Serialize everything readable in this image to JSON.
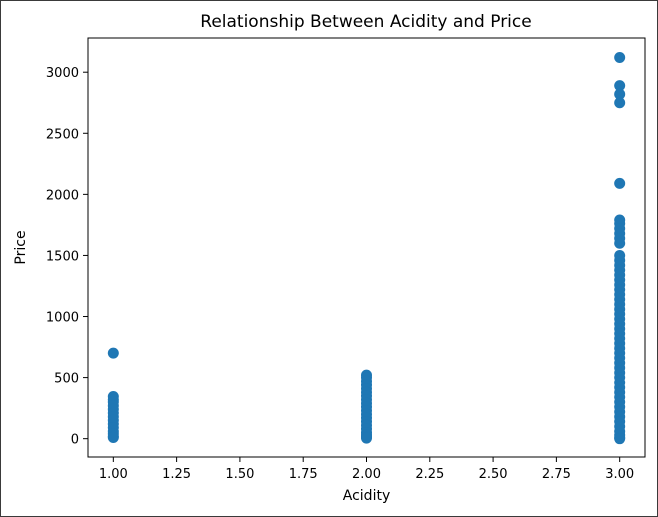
{
  "chart_data": {
    "type": "scatter",
    "title": "Relationship Between Acidity and Price",
    "xlabel": "Acidity",
    "ylabel": "Price",
    "xlim": [
      0.9,
      3.1
    ],
    "ylim": [
      -150,
      3280
    ],
    "xticks": [
      1.0,
      1.25,
      1.5,
      1.75,
      2.0,
      2.25,
      2.5,
      2.75,
      3.0
    ],
    "xtick_labels": [
      "1.00",
      "1.25",
      "1.50",
      "1.75",
      "2.00",
      "2.25",
      "2.50",
      "2.75",
      "3.00"
    ],
    "yticks": [
      0,
      500,
      1000,
      1500,
      2000,
      2500,
      3000
    ],
    "ytick_labels": [
      "0",
      "500",
      "1000",
      "1500",
      "2000",
      "2500",
      "3000"
    ],
    "grid": false,
    "marker_color": "#1f77b4",
    "series": [
      {
        "points": [
          [
            1.0,
            700
          ],
          [
            1.0,
            345
          ],
          [
            1.0,
            320
          ],
          [
            1.0,
            300
          ],
          [
            1.0,
            270
          ],
          [
            1.0,
            240
          ],
          [
            1.0,
            210
          ],
          [
            1.0,
            180
          ],
          [
            1.0,
            150
          ],
          [
            1.0,
            120
          ],
          [
            1.0,
            90
          ],
          [
            1.0,
            60
          ],
          [
            1.0,
            40
          ],
          [
            1.0,
            20
          ],
          [
            1.0,
            10
          ],
          [
            2.0,
            520
          ],
          [
            2.0,
            500
          ],
          [
            2.0,
            470
          ],
          [
            2.0,
            440
          ],
          [
            2.0,
            410
          ],
          [
            2.0,
            380
          ],
          [
            2.0,
            350
          ],
          [
            2.0,
            320
          ],
          [
            2.0,
            290
          ],
          [
            2.0,
            260
          ],
          [
            2.0,
            230
          ],
          [
            2.0,
            200
          ],
          [
            2.0,
            170
          ],
          [
            2.0,
            140
          ],
          [
            2.0,
            110
          ],
          [
            2.0,
            80
          ],
          [
            2.0,
            50
          ],
          [
            2.0,
            30
          ],
          [
            2.0,
            15
          ],
          [
            2.0,
            5
          ],
          [
            3.0,
            3120
          ],
          [
            3.0,
            2890
          ],
          [
            3.0,
            2820
          ],
          [
            3.0,
            2750
          ],
          [
            3.0,
            2090
          ],
          [
            3.0,
            1790
          ],
          [
            3.0,
            1760
          ],
          [
            3.0,
            1720
          ],
          [
            3.0,
            1680
          ],
          [
            3.0,
            1640
          ],
          [
            3.0,
            1600
          ],
          [
            3.0,
            1500
          ],
          [
            3.0,
            1460
          ],
          [
            3.0,
            1420
          ],
          [
            3.0,
            1380
          ],
          [
            3.0,
            1340
          ],
          [
            3.0,
            1300
          ],
          [
            3.0,
            1260
          ],
          [
            3.0,
            1220
          ],
          [
            3.0,
            1180
          ],
          [
            3.0,
            1140
          ],
          [
            3.0,
            1100
          ],
          [
            3.0,
            1060
          ],
          [
            3.0,
            1020
          ],
          [
            3.0,
            980
          ],
          [
            3.0,
            940
          ],
          [
            3.0,
            900
          ],
          [
            3.0,
            860
          ],
          [
            3.0,
            820
          ],
          [
            3.0,
            780
          ],
          [
            3.0,
            740
          ],
          [
            3.0,
            700
          ],
          [
            3.0,
            660
          ],
          [
            3.0,
            620
          ],
          [
            3.0,
            580
          ],
          [
            3.0,
            540
          ],
          [
            3.0,
            500
          ],
          [
            3.0,
            460
          ],
          [
            3.0,
            420
          ],
          [
            3.0,
            380
          ],
          [
            3.0,
            340
          ],
          [
            3.0,
            300
          ],
          [
            3.0,
            260
          ],
          [
            3.0,
            220
          ],
          [
            3.0,
            180
          ],
          [
            3.0,
            140
          ],
          [
            3.0,
            100
          ],
          [
            3.0,
            60
          ],
          [
            3.0,
            30
          ],
          [
            3.0,
            10
          ],
          [
            3.0,
            0
          ]
        ]
      }
    ]
  }
}
